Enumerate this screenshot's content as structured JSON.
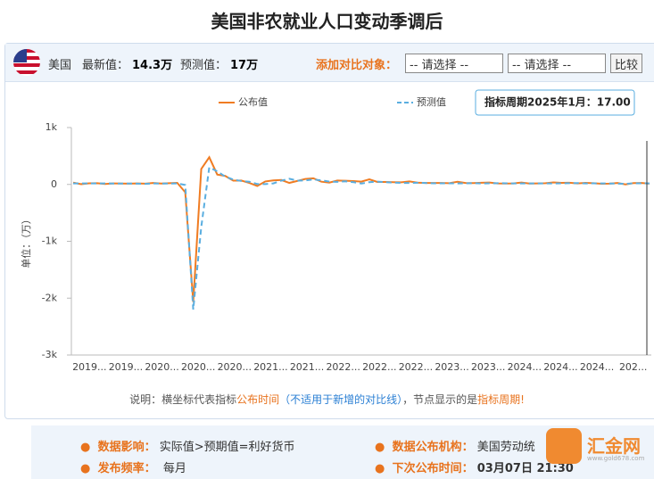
{
  "header": {
    "title": "美国非农就业人口变动季调后",
    "country": "美国",
    "latest_label": "最新值：",
    "latest": "14.3万",
    "forecast_label": "预测值：",
    "forecast": "17万",
    "compare_label": "添加对比对象：",
    "select1": "-- 请选择 --",
    "select2": "-- 请选择 --",
    "button": "比较"
  },
  "chart_data": {
    "type": "line",
    "y_label": "单位：（万）",
    "tooltip": "指标周期2025年1月：17.00",
    "x_tick_labels": [
      "2019...",
      "2019...",
      "2020...",
      "2020...",
      "2020...",
      "2021...",
      "2021...",
      "2022...",
      "2022...",
      "2022...",
      "2023...",
      "2023...",
      "2024...",
      "2024...",
      "2024...",
      "202..."
    ],
    "ylim": [
      -3000,
      1000
    ],
    "yticks": [
      {
        "value": 1000,
        "label": "1k"
      },
      0,
      {
        "value": -1000,
        "label": "-1k"
      },
      {
        "value": -2000,
        "label": "-2k"
      },
      {
        "value": -3000,
        "label": "-3k"
      }
    ],
    "series": [
      {
        "name": "公布值",
        "color": "#f07c22",
        "dashed": false,
        "values": [
          31,
          5,
          19,
          22,
          8,
          18,
          16,
          13,
          18,
          13,
          26,
          15,
          21,
          27,
          -137,
          -2068,
          272,
          478,
          173,
          149,
          66,
          68,
          26,
          -27,
          52,
          71,
          78,
          27,
          61,
          96,
          108,
          48,
          31,
          68,
          64,
          59,
          50,
          90,
          43,
          43,
          39,
          37,
          53,
          31,
          26,
          26,
          26,
          22,
          47,
          25,
          24,
          29,
          34,
          18,
          16,
          17,
          33,
          15,
          17,
          22,
          35,
          28,
          30,
          17,
          27,
          21,
          11,
          14,
          25,
          1,
          23,
          26,
          14.3
        ]
      },
      {
        "name": "预测值",
        "color": "#5aaee0",
        "dashed": true,
        "values": [
          18,
          17,
          17,
          18,
          18,
          16,
          16,
          16,
          14,
          9,
          18,
          16,
          16,
          17,
          -10,
          -2200,
          -750,
          300,
          230,
          137,
          85,
          60,
          47,
          7,
          6,
          18,
          66,
          100,
          67,
          70,
          87,
          72,
          50,
          45,
          55,
          40,
          15,
          40,
          49,
          39,
          32,
          27,
          25,
          30,
          25,
          20,
          20,
          20,
          18,
          20,
          23,
          18,
          19,
          22,
          20,
          17,
          17,
          18,
          18,
          17,
          17,
          20,
          21,
          24,
          18,
          19,
          18,
          16,
          14,
          11,
          20,
          20,
          17
        ]
      }
    ]
  },
  "note": {
    "prefix": "说明：横坐标代表指标",
    "t1": "公布时间",
    "t2": "（不适用于新增的对比线）",
    "t3": "，节点显示的是",
    "t4": "指标周期!"
  },
  "info": {
    "impact_label": "数据影响：",
    "impact": "实际值>预期值=利好货币",
    "org_label": "数据公布机构：",
    "org": "美国劳动统",
    "freq_label": "发布频率：",
    "freq": "每月",
    "next_label": "下次公布时间：",
    "next": "03月07日 21:30"
  },
  "logo": {
    "name": "汇金网",
    "url": "www.gold678.com"
  }
}
